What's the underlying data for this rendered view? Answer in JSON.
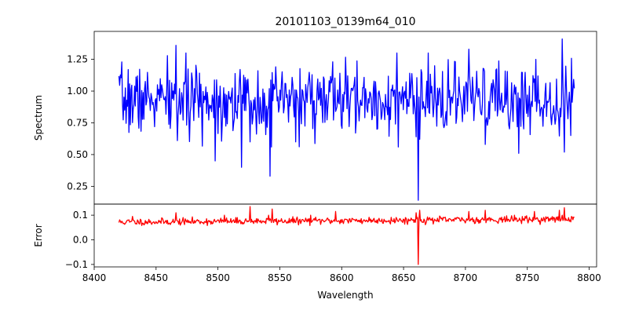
{
  "chart_data": [
    {
      "type": "line",
      "title": "20101103_0139m64_010",
      "xlabel": "",
      "ylabel": "Spectrum",
      "xlim": [
        8400,
        8806
      ],
      "ylim": [
        0.11,
        1.47
      ],
      "xticks": [],
      "yticks": [
        0.25,
        0.5,
        0.75,
        1.0,
        1.25
      ],
      "ytick_labels": [
        "0.25",
        "0.50",
        "0.75",
        "1.00",
        "1.25"
      ],
      "grid": false,
      "series": [
        {
          "color": "#0000ff",
          "x_range": [
            8420,
            8788
          ],
          "n_points": 640,
          "seed": 7,
          "baseline": 0.93,
          "noise": 0.13,
          "clip": [
            0.55,
            1.3
          ],
          "features": [
            {
              "x": 8466,
              "y": 1.36
            },
            {
              "x": 8467,
              "y": 0.61
            },
            {
              "x": 8498,
              "y": 0.45
            },
            {
              "x": 8519,
              "y": 0.4
            },
            {
              "x": 8526,
              "y": 0.6
            },
            {
              "x": 8542,
              "y": 0.33
            },
            {
              "x": 8543,
              "y": 0.56
            },
            {
              "x": 8563,
              "y": 0.6
            },
            {
              "x": 8593,
              "y": 1.23
            },
            {
              "x": 8646,
              "y": 0.56
            },
            {
              "x": 8660,
              "y": 0.64
            },
            {
              "x": 8662,
              "y": 0.14
            },
            {
              "x": 8663,
              "y": 0.62
            },
            {
              "x": 8703,
              "y": 1.33
            },
            {
              "x": 8716,
              "y": 0.58
            },
            {
              "x": 8743,
              "y": 0.51
            },
            {
              "x": 8757,
              "y": 1.25
            },
            {
              "x": 8778,
              "y": 1.41
            },
            {
              "x": 8780,
              "y": 0.52
            },
            {
              "x": 8785,
              "y": 0.65
            },
            {
              "x": 8787,
              "y": 1.0
            }
          ]
        }
      ]
    },
    {
      "type": "line",
      "title": "",
      "xlabel": "Wavelength",
      "ylabel": "Error",
      "xlim": [
        8400,
        8806
      ],
      "ylim": [
        -0.11,
        0.145
      ],
      "xticks": [
        8400,
        8450,
        8500,
        8550,
        8600,
        8650,
        8700,
        8750,
        8800
      ],
      "xtick_labels": [
        "8400",
        "8450",
        "8500",
        "8550",
        "8600",
        "8650",
        "8700",
        "8750",
        "8800"
      ],
      "yticks": [
        -0.1,
        0.0,
        0.1
      ],
      "ytick_labels": [
        "−0.1",
        "0.0",
        "0.1"
      ],
      "grid": false,
      "series": [
        {
          "color": "#ff0000",
          "x_range": [
            8420,
            8788
          ],
          "n_points": 640,
          "seed": 11,
          "baseline": 0.072,
          "noise": 0.007,
          "clip": [
            0.058,
            0.1
          ],
          "trend": 0.012,
          "features": [
            {
              "x": 8431,
              "y": 0.095
            },
            {
              "x": 8466,
              "y": 0.11
            },
            {
              "x": 8505,
              "y": 0.1
            },
            {
              "x": 8526,
              "y": 0.135
            },
            {
              "x": 8541,
              "y": 0.1
            },
            {
              "x": 8544,
              "y": 0.125
            },
            {
              "x": 8575,
              "y": 0.1
            },
            {
              "x": 8595,
              "y": 0.115
            },
            {
              "x": 8660,
              "y": 0.11
            },
            {
              "x": 8662,
              "y": -0.1
            },
            {
              "x": 8663,
              "y": 0.12
            },
            {
              "x": 8703,
              "y": 0.115
            },
            {
              "x": 8716,
              "y": 0.12
            },
            {
              "x": 8756,
              "y": 0.115
            },
            {
              "x": 8776,
              "y": 0.12
            },
            {
              "x": 8780,
              "y": 0.13
            }
          ]
        }
      ]
    }
  ]
}
